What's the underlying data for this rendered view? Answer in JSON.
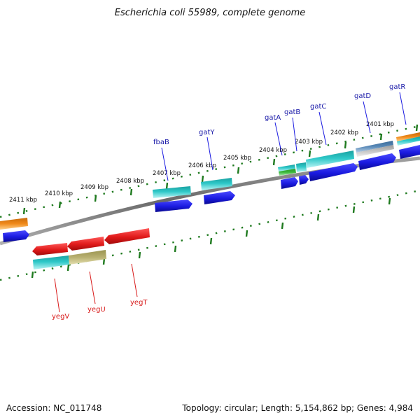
{
  "title": "Escherichia coli 55989, complete genome",
  "accession": "Accession: NC_011748",
  "topology": "Topology: circular; Length: 5,154,862 bp; Genes: 4,984",
  "kbp_labels": [
    "2411 kbp",
    "2410 kbp",
    "2409 kbp",
    "2408 kbp",
    "2407 kbp",
    "2406 kbp",
    "2405 kbp",
    "2404 kbp",
    "2403 kbp",
    "2402 kbp",
    "2401 kbp"
  ],
  "genes_forward": [
    "gatR",
    "gatD",
    "gatC",
    "gatB",
    "gatA",
    "gatY",
    "fbaB"
  ],
  "genes_reverse": [
    "yegT",
    "yegU",
    "yegV"
  ],
  "colors": {
    "forward_label": "#1a1aa8",
    "reverse_label": "#d81a1a",
    "tick": "#1f7a1f",
    "backbone": "#7a7a7a",
    "blue": "#1a1ae0",
    "cyan": "#2ec8c8",
    "red": "#e01a1a",
    "orange": "#f08a1a",
    "khaki": "#b8b070",
    "green": "#3ab83a",
    "steel": "#4a7aa8",
    "gray": "#b0b0b0"
  }
}
